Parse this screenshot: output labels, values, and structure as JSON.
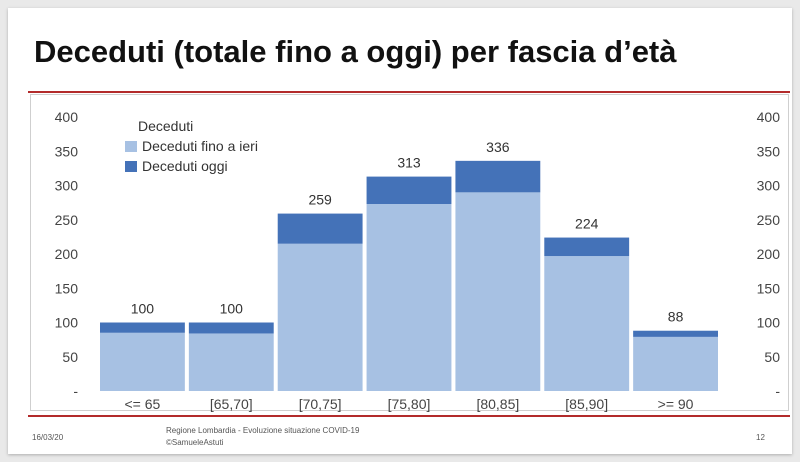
{
  "slide": {
    "title": "Deceduti (totale fino a oggi) per fascia d’età",
    "footer": {
      "date": "16/03/20",
      "source_line1": "Regione Lombardia - Evoluzione situazione COVID-19",
      "source_line2": "©SamueleAstuti",
      "page": "12"
    }
  },
  "colors": {
    "rule": "#b32b2b",
    "series_light": "#a7c1e3",
    "series_dark": "#4472b8"
  },
  "chart_data": {
    "type": "bar",
    "stacked": true,
    "title": "",
    "xlabel": "",
    "ylabel": "",
    "categories": [
      "<= 65",
      "[65,70]",
      "[70,75]",
      "[75,80]",
      "[80,85]",
      "[85,90]",
      ">= 90"
    ],
    "series": [
      {
        "name": "Deceduti fino a ieri",
        "values": [
          85,
          84,
          215,
          273,
          290,
          197,
          79
        ]
      },
      {
        "name": "Deceduti oggi",
        "values": [
          15,
          16,
          44,
          40,
          46,
          27,
          9
        ]
      }
    ],
    "totals": [
      100,
      100,
      259,
      313,
      336,
      224,
      88
    ],
    "ylim": [
      0,
      400
    ],
    "yticks": [
      "-",
      "50",
      "100",
      "150",
      "200",
      "250",
      "300",
      "350",
      "400"
    ],
    "y_axis_right": true,
    "grid": false,
    "legend": {
      "title": "Deceduti",
      "placement": "top-left"
    }
  }
}
